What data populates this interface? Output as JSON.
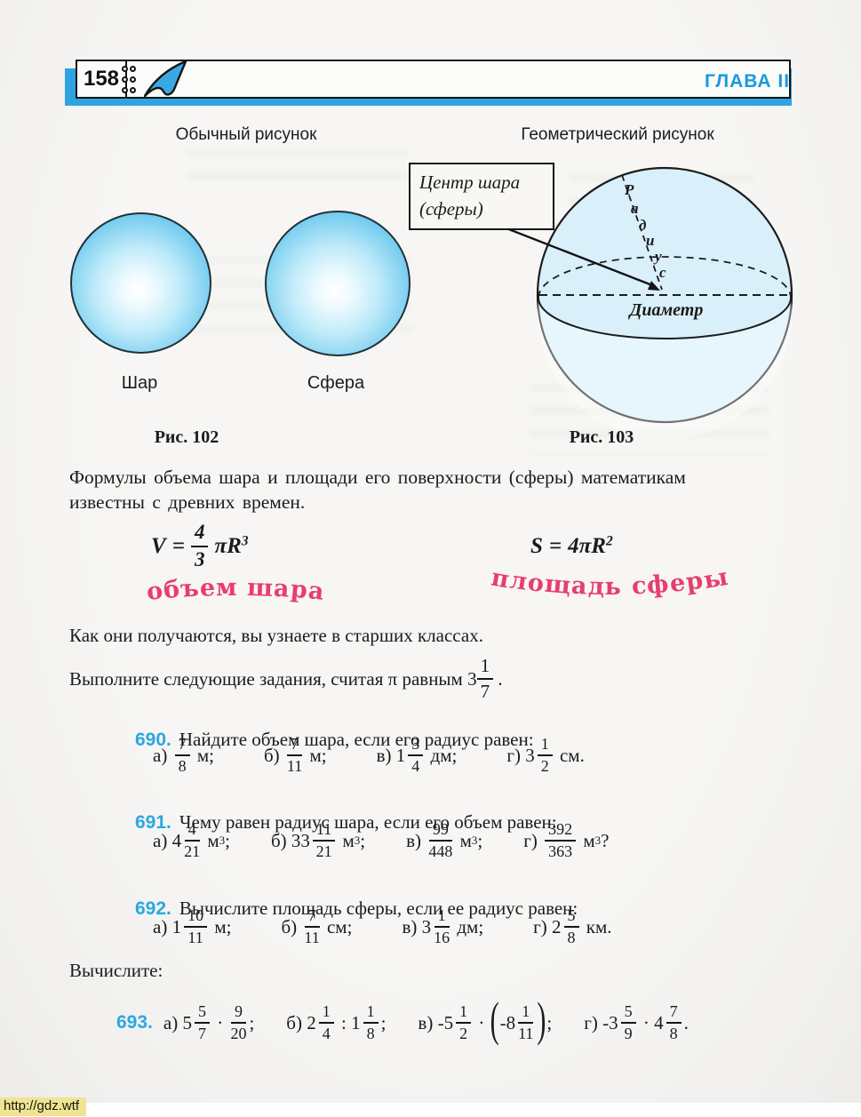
{
  "header": {
    "page_number": "158",
    "chapter": "ГЛАВА II"
  },
  "figure": {
    "left_label": "Обычный рисунок",
    "right_label": "Геометрический рисунок",
    "ball_label": "Шар",
    "sphere_label": "Сфера",
    "callout_line1": "Центр шара",
    "callout_line2": "(сферы)",
    "radius_word": "Радиус",
    "radius_letters": [
      "Р",
      "а",
      "д",
      "и",
      "у",
      "с"
    ],
    "diameter_label": "Диаметр",
    "caption_left": "Рис. 102",
    "caption_right": "Рис. 103"
  },
  "intro": {
    "paragraph_line1": "Формулы объема шара и площади его поверхности (сферы) математикам",
    "paragraph_line2": "известны с древних времен.",
    "formula_v": {
      "lhs": "V",
      "eq": "=",
      "num": "4",
      "den": "3",
      "rhs": "πR",
      "sup": "3"
    },
    "formula_s": {
      "lhs": "S",
      "eq": "=",
      "rhs": "4πR",
      "sup": "2"
    },
    "stamp_v": "объем шара",
    "stamp_s": "площадь сферы",
    "line2": "Как они получаются, вы узнаете в старших классах.",
    "line3_tokens": [
      {
        "t": "w",
        "v": "Выполните следующие задания, считая π равным 3"
      },
      {
        "t": "f",
        "n": "1",
        "d": "7"
      },
      {
        "t": "w",
        "v": " ."
      }
    ]
  },
  "problems": [
    {
      "number": "690.",
      "statement": "Найдите объем шара, если его радиус равен:",
      "options": [
        {
          "tokens": [
            {
              "t": "w",
              "v": "а) "
            },
            {
              "t": "f",
              "n": "7",
              "d": "8"
            },
            {
              "t": "w",
              "v": " м;"
            }
          ]
        },
        {
          "tokens": [
            {
              "t": "w",
              "v": "б) "
            },
            {
              "t": "f",
              "n": "7",
              "d": "11"
            },
            {
              "t": "w",
              "v": " м;"
            }
          ]
        },
        {
          "tokens": [
            {
              "t": "w",
              "v": "в) 1"
            },
            {
              "t": "f",
              "n": "3",
              "d": "4"
            },
            {
              "t": "w",
              "v": " дм;"
            }
          ]
        },
        {
          "tokens": [
            {
              "t": "w",
              "v": "г) 3"
            },
            {
              "t": "f",
              "n": "1",
              "d": "2"
            },
            {
              "t": "w",
              "v": " см."
            }
          ]
        }
      ]
    },
    {
      "number": "691.",
      "statement": "Чему равен радиус шара, если его объем равен:",
      "options": [
        {
          "tokens": [
            {
              "t": "w",
              "v": "а) 4"
            },
            {
              "t": "f",
              "n": "4",
              "d": "21"
            },
            {
              "t": "w",
              "v": " м"
            },
            {
              "t": "s",
              "v": "3"
            },
            {
              "t": "w",
              "v": ";"
            }
          ]
        },
        {
          "tokens": [
            {
              "t": "w",
              "v": "б) 33"
            },
            {
              "t": "f",
              "n": "11",
              "d": "21"
            },
            {
              "t": "w",
              "v": " м"
            },
            {
              "t": "s",
              "v": "3"
            },
            {
              "t": "w",
              "v": ";"
            }
          ]
        },
        {
          "tokens": [
            {
              "t": "w",
              "v": "в) "
            },
            {
              "t": "f",
              "n": "99",
              "d": "448"
            },
            {
              "t": "w",
              "v": " м"
            },
            {
              "t": "s",
              "v": "3"
            },
            {
              "t": "w",
              "v": ";"
            }
          ]
        },
        {
          "tokens": [
            {
              "t": "w",
              "v": "г) "
            },
            {
              "t": "f",
              "n": "392",
              "d": "363"
            },
            {
              "t": "w",
              "v": " м"
            },
            {
              "t": "s",
              "v": "3"
            },
            {
              "t": "w",
              "v": "?"
            }
          ]
        }
      ]
    },
    {
      "number": "692.",
      "statement": "Вычислите площадь сферы, если ее радиус равен:",
      "options": [
        {
          "tokens": [
            {
              "t": "w",
              "v": "а) 1"
            },
            {
              "t": "f",
              "n": "10",
              "d": "11"
            },
            {
              "t": "w",
              "v": " м;"
            }
          ]
        },
        {
          "tokens": [
            {
              "t": "w",
              "v": "б) "
            },
            {
              "t": "f",
              "n": "7",
              "d": "11"
            },
            {
              "t": "w",
              "v": " см;"
            }
          ]
        },
        {
          "tokens": [
            {
              "t": "w",
              "v": "в) 3"
            },
            {
              "t": "f",
              "n": "1",
              "d": "16"
            },
            {
              "t": "w",
              "v": " дм;"
            }
          ]
        },
        {
          "tokens": [
            {
              "t": "w",
              "v": "г) 2"
            },
            {
              "t": "f",
              "n": "5",
              "d": "8"
            },
            {
              "t": "w",
              "v": " км."
            }
          ]
        }
      ]
    }
  ],
  "compute_heading": "Вычислите:",
  "problem_693": {
    "number": "693.",
    "options": [
      {
        "tokens": [
          {
            "t": "w",
            "v": "а) 5"
          },
          {
            "t": "f",
            "n": "5",
            "d": "7"
          },
          {
            "t": "w",
            "v": " · "
          },
          {
            "t": "f",
            "n": "9",
            "d": "20"
          },
          {
            "t": "w",
            "v": ";"
          }
        ]
      },
      {
        "tokens": [
          {
            "t": "w",
            "v": "б) 2"
          },
          {
            "t": "f",
            "n": "1",
            "d": "4"
          },
          {
            "t": "w",
            "v": " : 1"
          },
          {
            "t": "f",
            "n": "1",
            "d": "8"
          },
          {
            "t": "w",
            "v": ";"
          }
        ]
      },
      {
        "tokens": [
          {
            "t": "w",
            "v": "в) -5"
          },
          {
            "t": "f",
            "n": "1",
            "d": "2"
          },
          {
            "t": "w",
            "v": " · "
          },
          {
            "t": "p",
            "v": "("
          },
          {
            "t": "w",
            "v": "-8"
          },
          {
            "t": "f",
            "n": "1",
            "d": "11"
          },
          {
            "t": "p",
            "v": ")"
          },
          {
            "t": "w",
            "v": ";"
          }
        ]
      },
      {
        "tokens": [
          {
            "t": "w",
            "v": "г) -3"
          },
          {
            "t": "f",
            "n": "5",
            "d": "9"
          },
          {
            "t": "w",
            "v": " · 4"
          },
          {
            "t": "f",
            "n": "7",
            "d": "8"
          },
          {
            "t": "w",
            "v": "."
          }
        ]
      }
    ]
  },
  "watermark": "http://gdz.wtf",
  "colors": {
    "accent_blue": "#2ea4e2",
    "chapter_blue": "#1b99dd",
    "stamp_pink": "#e73e6d"
  }
}
